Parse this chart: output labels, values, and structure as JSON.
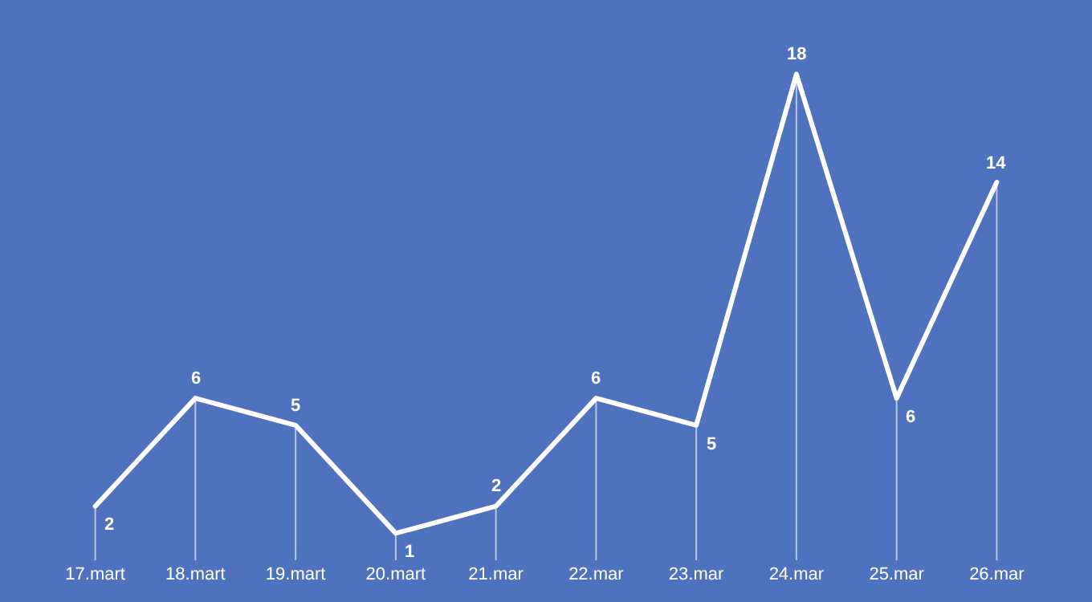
{
  "chart_data": {
    "type": "line",
    "categories": [
      "17.mart",
      "18.mart",
      "19.mart",
      "20.mart",
      "21.mar",
      "22.mar",
      "23.mar",
      "24.mar",
      "25.mar",
      "26.mar"
    ],
    "series": [
      {
        "color": "#ffffff",
        "values": [
          2,
          6,
          5,
          1,
          2,
          6,
          5,
          18,
          6,
          14
        ]
      }
    ],
    "data_labels": true,
    "marker": "none",
    "line_style": "solid",
    "tick_labels": "x"
  }
}
